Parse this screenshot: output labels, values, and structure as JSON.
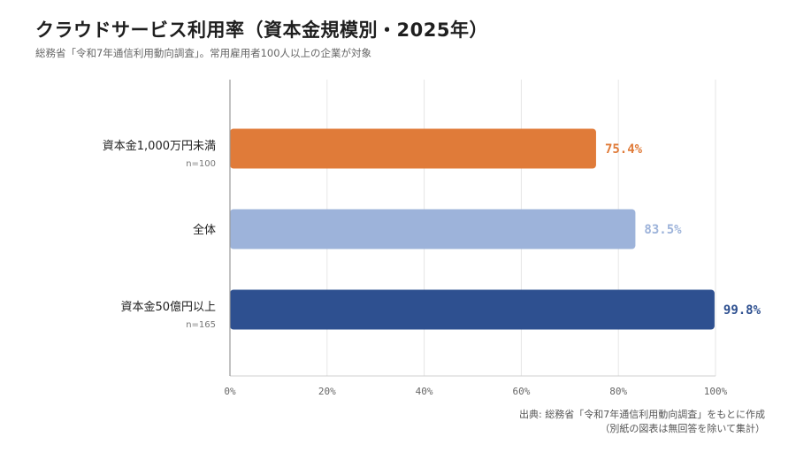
{
  "title": "クラウドサービス利用率（資本金規模別・2025年）",
  "subtitle": "総務省「令和7年通信利用動向調査」。常用雇用者100人以上の企業が対象",
  "source_line1": "出典: 総務省「令和7年通信利用動向調査」をもとに作成",
  "source_line2": "（別紙の図表は無回答を除いて集計）",
  "chart_data": {
    "type": "bar",
    "orientation": "horizontal",
    "title": "クラウドサービス利用率（資本金規模別・2025年）",
    "subtitle": "総務省「令和7年通信利用動向調査」。常用雇用者100人以上の企業が対象",
    "categories": [
      "資本金1,000万円未満",
      "全体",
      "資本金50億円以上"
    ],
    "sample_sizes": [
      "n=100",
      "",
      "n=165"
    ],
    "values": [
      75.4,
      83.5,
      99.8
    ],
    "value_labels": [
      "75.4%",
      "83.5%",
      "99.8%"
    ],
    "colors": [
      "#e07b39",
      "#9db3da",
      "#2e5090"
    ],
    "xlim": [
      0,
      100
    ],
    "xticks": [
      0,
      20,
      40,
      60,
      80,
      100
    ],
    "xtick_labels": [
      "0%",
      "20%",
      "40%",
      "60%",
      "80%",
      "100%"
    ],
    "grid": "vertical",
    "legend": "none"
  }
}
